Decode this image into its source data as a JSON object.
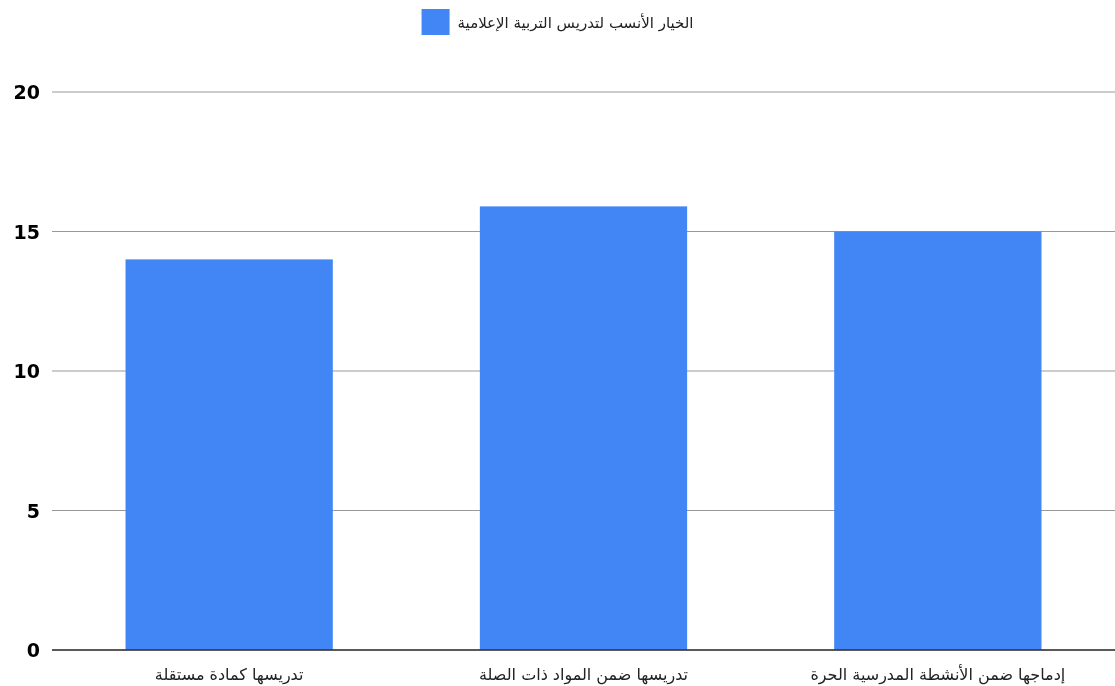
{
  "chart_data": {
    "type": "bar",
    "categories": [
      "تدريسها كمادة مستقلة",
      "تدريسها ضمن المواد ذات الصلة",
      "إدماجها ضمن الأنشطة المدرسية الحرة"
    ],
    "series": [
      {
        "name": "الخيار الأنسب لتدريس التربية الإعلامية",
        "color": "#4285f4",
        "values": [
          14,
          15.9,
          15
        ]
      }
    ],
    "ylim": [
      0,
      20
    ],
    "yticks": [
      0,
      5,
      10,
      15,
      20
    ],
    "grid": "y",
    "legend": "top"
  }
}
